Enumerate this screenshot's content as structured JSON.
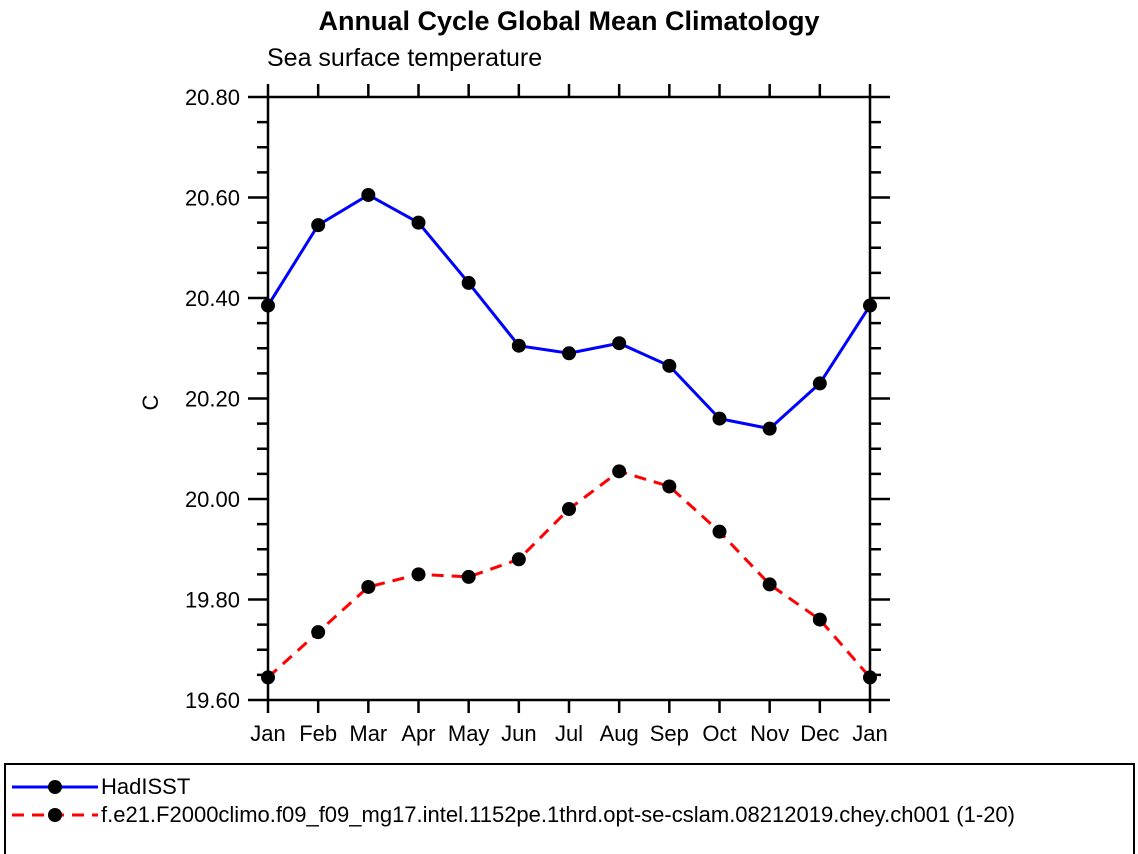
{
  "page": {
    "background_color": "#ffffff",
    "text_color": "#000000"
  },
  "chart_data": {
    "type": "line",
    "title": "Annual Cycle Global Mean Climatology",
    "subtitle": "Sea surface temperature",
    "xlabel": "",
    "ylabel": "C",
    "categories": [
      "Jan",
      "Feb",
      "Mar",
      "Apr",
      "May",
      "Jun",
      "Jul",
      "Aug",
      "Sep",
      "Oct",
      "Nov",
      "Dec",
      "Jan"
    ],
    "ylim": [
      19.6,
      20.8
    ],
    "ytick_labels": [
      "19.60",
      "19.80",
      "20.00",
      "20.20",
      "20.40",
      "20.60",
      "20.80"
    ],
    "ytick_major_step": 0.2,
    "ytick_minor_step": 0.05,
    "grid": "off",
    "legend_position": "bottom-box-full-width",
    "marker": {
      "shape": "filled-circle",
      "color": "#000000"
    },
    "series": [
      {
        "name": "HadISST",
        "color": "#0000ff",
        "line_style": "solid",
        "values": [
          20.385,
          20.545,
          20.605,
          20.55,
          20.43,
          20.305,
          20.29,
          20.31,
          20.265,
          20.16,
          20.14,
          20.23,
          20.385
        ]
      },
      {
        "name": "f.e21.F2000climo.f09_f09_mg17.intel.1152pe.1thrd.opt-se-cslam.08212019.chey.ch001 (1-20)",
        "color": "#ff0000",
        "line_style": "dashed",
        "values": [
          19.645,
          19.735,
          19.825,
          19.85,
          19.845,
          19.88,
          19.98,
          20.055,
          20.025,
          19.935,
          19.83,
          19.76,
          19.645
        ]
      }
    ]
  }
}
